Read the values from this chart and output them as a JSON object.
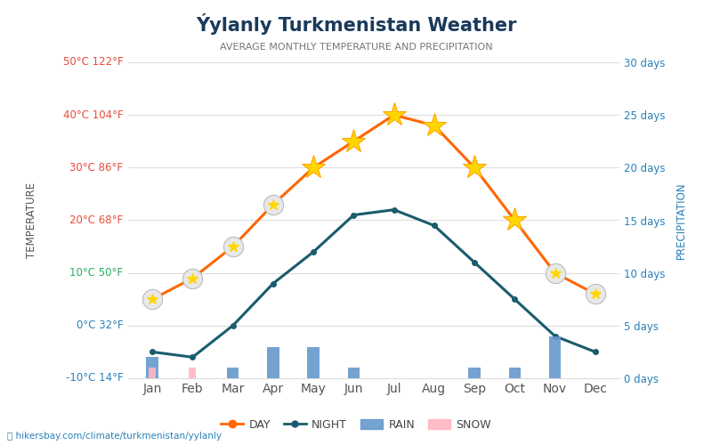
{
  "title": "Ýylanly Turkmenistan Weather",
  "subtitle": "AVERAGE MONTHLY TEMPERATURE AND PRECIPITATION",
  "months": [
    "Jan",
    "Feb",
    "Mar",
    "Apr",
    "May",
    "Jun",
    "Jul",
    "Aug",
    "Sep",
    "Oct",
    "Nov",
    "Dec"
  ],
  "day_temps": [
    5,
    9,
    15,
    23,
    30,
    35,
    40,
    38,
    30,
    20,
    10,
    6
  ],
  "night_temps": [
    -5,
    -6,
    0,
    8,
    14,
    21,
    22,
    19,
    12,
    5,
    -2,
    -5
  ],
  "rain_days": [
    2,
    0,
    1,
    3,
    3,
    1,
    0,
    0,
    1,
    1,
    4,
    0
  ],
  "snow_days": [
    1,
    1,
    0,
    0,
    0,
    0,
    0,
    0,
    0,
    0,
    0,
    0
  ],
  "temp_min": -10,
  "temp_max": 50,
  "precip_min": 0,
  "precip_max": 30,
  "temp_ticks": [
    -10,
    0,
    10,
    20,
    30,
    40,
    50
  ],
  "temp_tick_labels": [
    "-10°C 14°F",
    "0°C 32°F",
    "10°C 50°F",
    "20°C 68°F",
    "30°C 86°F",
    "40°C 104°F",
    "50°C 122°F"
  ],
  "tick_colors": [
    "#2980b9",
    "#2980b9",
    "#27ae60",
    "#e74c3c",
    "#e74c3c",
    "#e74c3c",
    "#e74c3c"
  ],
  "precip_ticks": [
    0,
    5,
    10,
    15,
    20,
    25,
    30
  ],
  "precip_tick_labels": [
    "0 days",
    "5 days",
    "10 days",
    "15 days",
    "20 days",
    "25 days",
    "30 days"
  ],
  "day_color": "#FF6600",
  "night_color": "#1a5c6e",
  "rain_color": "#6699CC",
  "snow_color": "#FFB6C1",
  "title_color": "#1a3a5c",
  "subtitle_color": "#777777",
  "ylabel_color": "#555555",
  "right_ylabel_color": "#2980b9",
  "website_text": "hikersbay.com/climate/turkmenistan/yylanly",
  "background_color": "#ffffff",
  "bar_width": 0.3,
  "sun_marker_months": [
    4,
    5,
    6,
    7,
    8,
    9
  ],
  "cloud_marker_months": [
    0,
    1,
    2,
    3,
    10,
    11
  ],
  "grid_color": "#dddddd",
  "xticklabel_color": "#555555"
}
